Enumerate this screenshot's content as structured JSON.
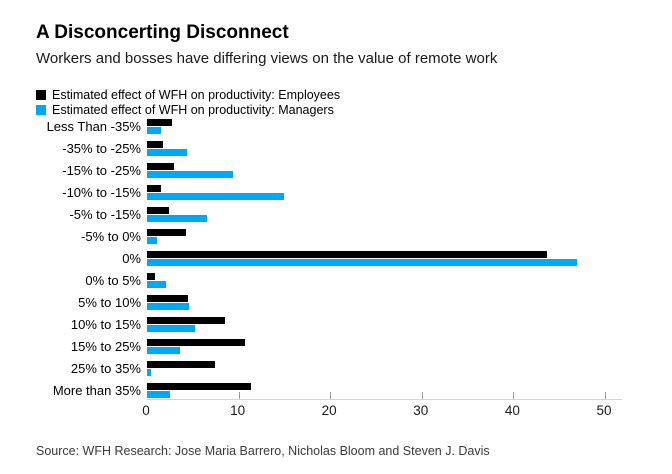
{
  "header": {
    "title": "A Disconcerting Disconnect",
    "subtitle": "Workers and bosses have differing views on the value of remote work"
  },
  "legend": [
    {
      "label": "Estimated effect of WFH on productivity: Employees",
      "color": "#000000"
    },
    {
      "label": "Estimated effect of WFH on productivity: Managers",
      "color": "#00A9F4"
    }
  ],
  "source": "Source: WFH Research: Jose Maria Barrero, Nicholas Bloom and Steven J. Davis",
  "chart_data": {
    "type": "bar",
    "orientation": "horizontal",
    "title": "A Disconcerting Disconnect",
    "subtitle": "Workers and bosses have differing views on the value of remote work",
    "categories": [
      "Less Than -35%",
      "-35% to -25%",
      "-15% to -25%",
      "-10% to -15%",
      "-5% to -15%",
      "-5% to 0%",
      "0%",
      "0% to 5%",
      "5% to 10%",
      "10% to 15%",
      "15% to 25%",
      "25% to 35%",
      "More than 35%"
    ],
    "series": [
      {
        "name": "Estimated effect of WFH on productivity: Employees",
        "color": "#000000",
        "values": [
          2.7,
          1.7,
          3.0,
          1.5,
          2.4,
          4.3,
          43.7,
          0.9,
          4.5,
          8.5,
          10.7,
          7.4,
          11.4
        ]
      },
      {
        "name": "Estimated effect of WFH on productivity: Managers",
        "color": "#00A9F4",
        "values": [
          1.5,
          4.4,
          9.4,
          15.0,
          6.6,
          1.1,
          46.9,
          2.1,
          4.6,
          5.2,
          3.6,
          0.4,
          2.5
        ]
      }
    ],
    "xlabel": "",
    "ylabel": "",
    "xlim": [
      0,
      50
    ],
    "xticks": [
      0,
      10,
      20,
      30,
      40,
      50
    ],
    "grid": false,
    "legend_position": "top-left"
  }
}
